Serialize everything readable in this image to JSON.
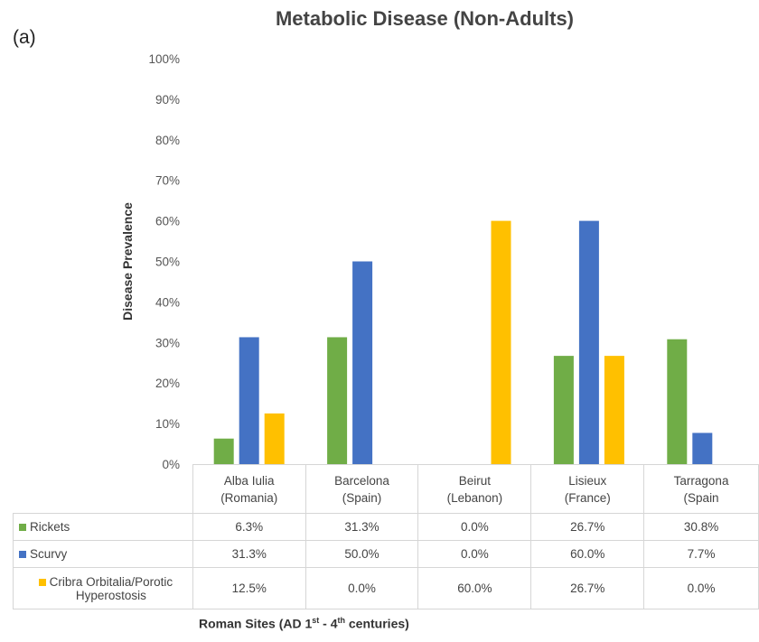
{
  "panel_label": "(a)",
  "chart_data": {
    "type": "bar",
    "title": "Metabolic Disease (Non-Adults)",
    "ylabel": "Disease Prevalence",
    "xlabel_parts": [
      "Roman Sites (AD 1",
      "st",
      " - 4",
      "th",
      " centuries)"
    ],
    "ylim": [
      0,
      100
    ],
    "yticks": [
      "0%",
      "10%",
      "20%",
      "30%",
      "40%",
      "50%",
      "60%",
      "70%",
      "80%",
      "90%",
      "100%"
    ],
    "grid": false,
    "categories": [
      [
        "Alba Iulia",
        "(Romania)"
      ],
      [
        "Barcelona",
        "(Spain)"
      ],
      [
        "Beirut",
        "(Lebanon)"
      ],
      [
        "Lisieux",
        "(France)"
      ],
      [
        "Tarragona",
        "(Spain"
      ]
    ],
    "series": [
      {
        "name": "Rickets",
        "color": "#70ad47",
        "values": [
          6.3,
          31.3,
          0.0,
          26.7,
          30.8
        ],
        "labels": [
          "6.3%",
          "31.3%",
          "0.0%",
          "26.7%",
          "30.8%"
        ]
      },
      {
        "name": "Scurvy",
        "color": "#4472c4",
        "values": [
          31.3,
          50.0,
          0.0,
          60.0,
          7.7
        ],
        "labels": [
          "31.3%",
          "50.0%",
          "0.0%",
          "60.0%",
          "7.7%"
        ]
      },
      {
        "name_lines": [
          "Cribra Orbitalia/Porotic",
          "Hyperostosis"
        ],
        "color": "#ffc000",
        "values": [
          12.5,
          0.0,
          60.0,
          26.7,
          0.0
        ],
        "labels": [
          "12.5%",
          "0.0%",
          "60.0%",
          "26.7%",
          "0.0%"
        ]
      }
    ]
  }
}
